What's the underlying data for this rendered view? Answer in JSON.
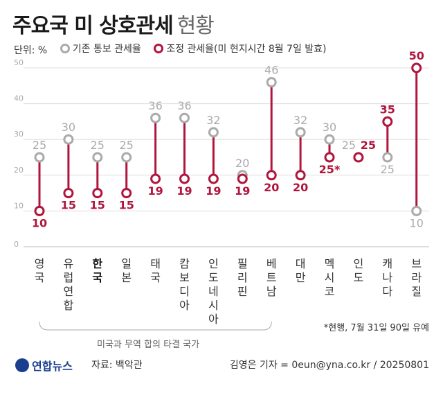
{
  "title": "주요국 미 상호관세",
  "subtitle": "현황",
  "unit_label": "단위: %",
  "legend": {
    "existing": "기존 통보 관세율",
    "adjusted": "조정 관세율(미 현지시간 8월 7일 발효)"
  },
  "footnote": "*현행, 7월 31일 90일 유예",
  "group_label": "미국과 무역 합의 타결 국가",
  "logo_text": "연합뉴스",
  "source": "자료: 백악관",
  "credit": "김영은 기자 = 0eun@yna.co.kr / 20250801",
  "colors": {
    "existing": "#aaaaaa",
    "adjusted": "#b1153c",
    "grid": "#dddddd"
  },
  "chart_data": {
    "type": "dumbbell",
    "ylim": [
      0,
      50
    ],
    "yticks": [
      0,
      10,
      20,
      30,
      40,
      50
    ],
    "categories": [
      "영국",
      "유럽연합",
      "한국",
      "일본",
      "태국",
      "캄보디아",
      "인도네시아",
      "필리핀",
      "베트남",
      "대만",
      "멕시코",
      "인도",
      "캐나다",
      "브라질"
    ],
    "highlight_category": "한국",
    "series": [
      {
        "name": "기존 통보 관세율",
        "values": [
          25,
          30,
          25,
          25,
          36,
          36,
          32,
          20,
          46,
          32,
          30,
          25,
          25,
          10
        ]
      },
      {
        "name": "조정 관세율(미 현지시간 8월 7일 발효)",
        "values": [
          10,
          15,
          15,
          15,
          19,
          19,
          19,
          19,
          20,
          20,
          25,
          25,
          35,
          50
        ]
      }
    ],
    "adjusted_label_suffix": [
      "",
      "",
      "",
      "",
      "",
      "",
      "",
      "",
      "",
      "",
      "*",
      "",
      "",
      ""
    ],
    "group_range": [
      "영국",
      "베트남"
    ]
  }
}
